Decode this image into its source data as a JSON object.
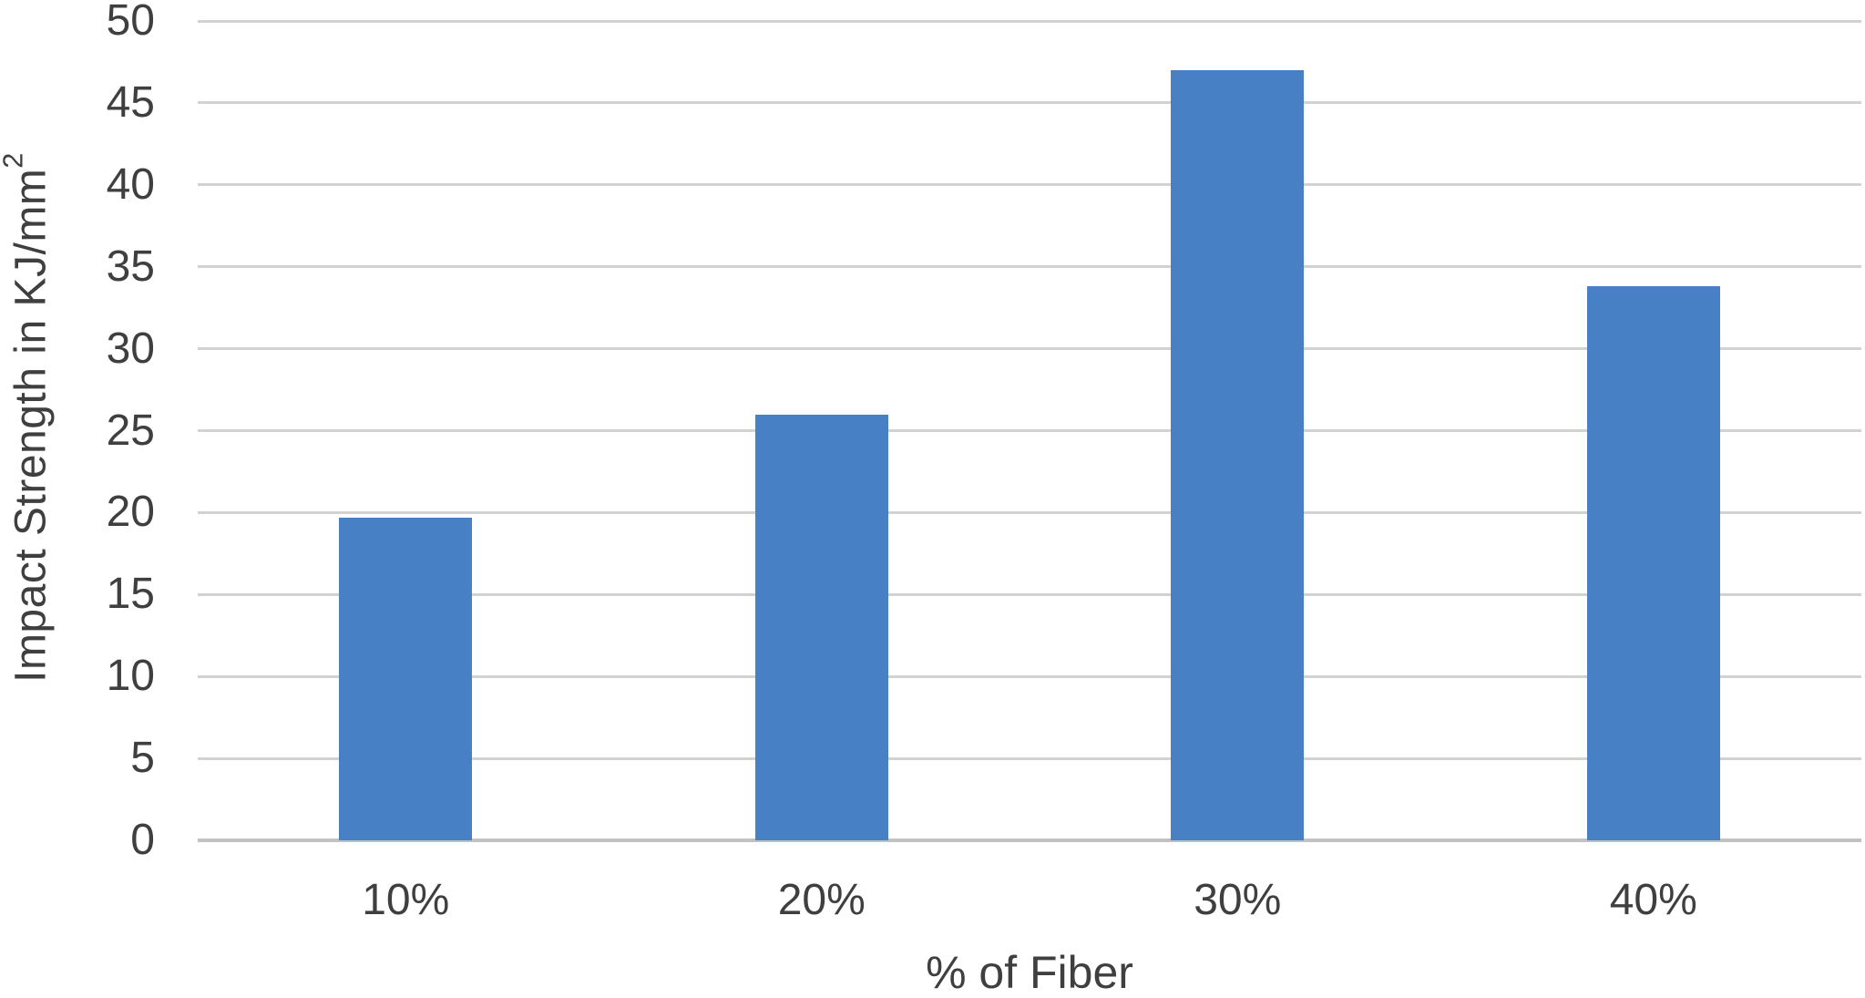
{
  "chart_data": {
    "type": "bar",
    "title": "",
    "categories": [
      "10%",
      "20%",
      "30%",
      "40%"
    ],
    "values": [
      19.7,
      26,
      47,
      33.8
    ],
    "xlabel": "% of Fiber",
    "ylabel": "Impact Strength in KJ/mm²",
    "ylim": [
      0,
      50
    ],
    "ytick_step": 5,
    "yticks": [
      0,
      5,
      10,
      15,
      20,
      25,
      30,
      35,
      40,
      45,
      50
    ],
    "grid": "horizontal-only",
    "legend": "none",
    "series_color": "#4880C6"
  },
  "axis": {
    "x_title": "% of Fiber",
    "y_title_base": "Impact Strength in KJ/mm",
    "y_title_sup": "2"
  },
  "colors": {
    "bar": "#4880C6",
    "gridline": "#D2D2D2",
    "axis_line": "#C2C2C2",
    "text": "#3F3F3F",
    "background": "#FFFFFF"
  }
}
